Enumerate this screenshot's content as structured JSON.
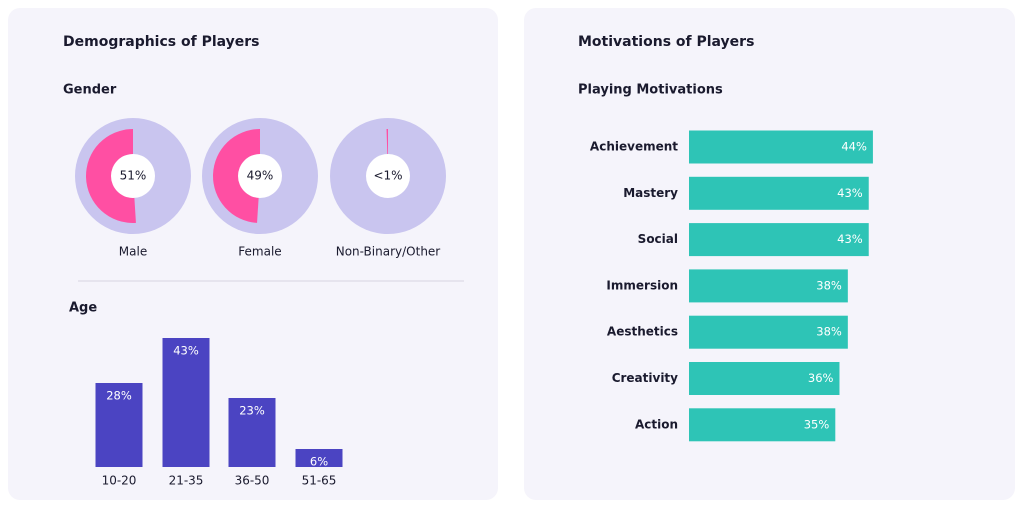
{
  "panels": [
    {
      "title": "Demographics of Players"
    },
    {
      "title": "Motivations of Players"
    }
  ],
  "chart_data": [
    {
      "type": "donut",
      "title": "Gender",
      "categories": [
        "Male",
        "Female",
        "Non-Binary/Other"
      ],
      "values": [
        51,
        49,
        0.5
      ],
      "value_labels": [
        "51%",
        "49%",
        "<1%"
      ],
      "color": "#ff4fa3",
      "track_color": "#c9c5ef"
    },
    {
      "type": "bar",
      "title": "Age",
      "categories": [
        "10-20",
        "21-35",
        "36-50",
        "51-65"
      ],
      "values": [
        28,
        43,
        23,
        6
      ],
      "value_labels": [
        "28%",
        "43%",
        "23%",
        "6%"
      ],
      "color": "#4b44c2"
    },
    {
      "type": "hbar",
      "title": "Playing Motivations",
      "categories": [
        "Achievement",
        "Mastery",
        "Social",
        "Immersion",
        "Aesthetics",
        "Creativity",
        "Action"
      ],
      "values": [
        44,
        43,
        43,
        38,
        38,
        36,
        35
      ],
      "value_labels": [
        "44%",
        "43%",
        "43%",
        "38%",
        "38%",
        "36%",
        "35%"
      ],
      "color": "#2ec4b6"
    }
  ]
}
